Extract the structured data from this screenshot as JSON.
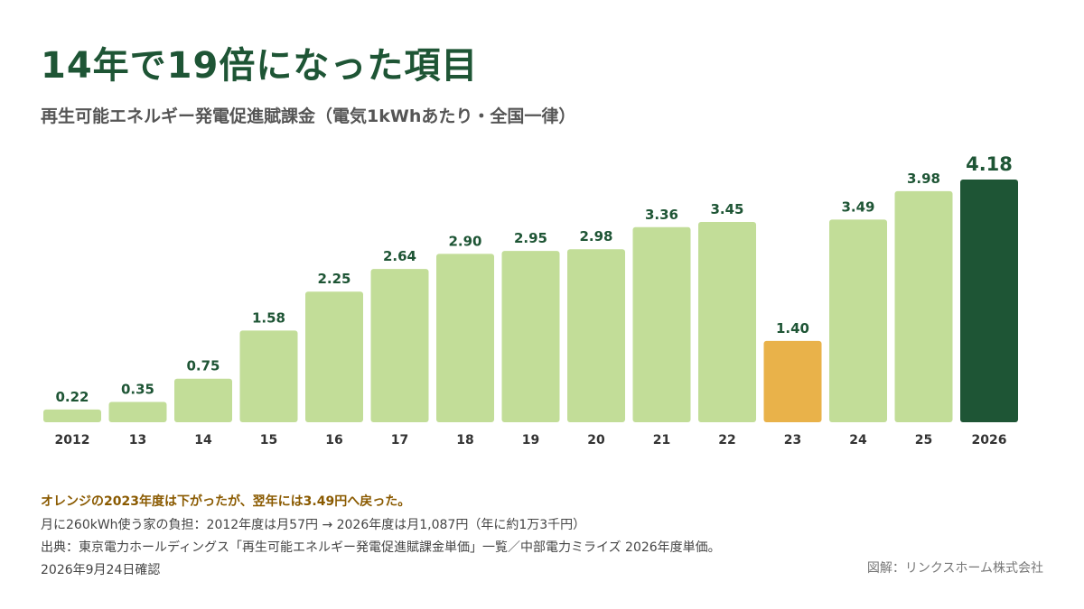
{
  "title": "14年で19倍になった項目",
  "subtitle": "再生可能エネルギー発電促進賦課金（電気1kWhあたり・全国一律）",
  "colors": {
    "default_bar": "#c2dd98",
    "highlight_bar": "#e9b24a",
    "latest_bar": "#1e5535",
    "title": "#1e5535",
    "note_highlight": "#8a5a00"
  },
  "chart_data": {
    "type": "bar",
    "categories": [
      "2012",
      "13",
      "14",
      "15",
      "16",
      "17",
      "18",
      "19",
      "20",
      "21",
      "22",
      "23",
      "24",
      "25",
      "2026"
    ],
    "values": [
      0.22,
      0.35,
      0.75,
      1.58,
      2.25,
      2.64,
      2.9,
      2.95,
      2.98,
      3.36,
      3.45,
      1.4,
      3.49,
      3.98,
      4.18
    ],
    "value_labels": [
      "0.22",
      "0.35",
      "0.75",
      "1.58",
      "2.25",
      "2.64",
      "2.90",
      "2.95",
      "2.98",
      "3.36",
      "3.45",
      "1.40",
      "3.49",
      "3.98",
      "4.18"
    ],
    "highlight_index": 11,
    "latest_index": 14,
    "ylim": [
      0,
      4.18
    ],
    "grid": false,
    "xlabel": "",
    "ylabel": ""
  },
  "notes": {
    "highlight": "オレンジの2023年度は下がったが、翌年には3.49円へ戻った。",
    "burden": "月に260kWh使う家の負担：2012年度は月57円 → 2026年度は月1,087円（年に約1万3千円）",
    "source": "出典：東京電力ホールディングス「再生可能エネルギー発電促進賦課金単価」一覧／中部電力ミライズ 2026年度単価。",
    "confirmed": "2026年9月24日確認",
    "credit": "図解：リンクスホーム株式会社"
  }
}
